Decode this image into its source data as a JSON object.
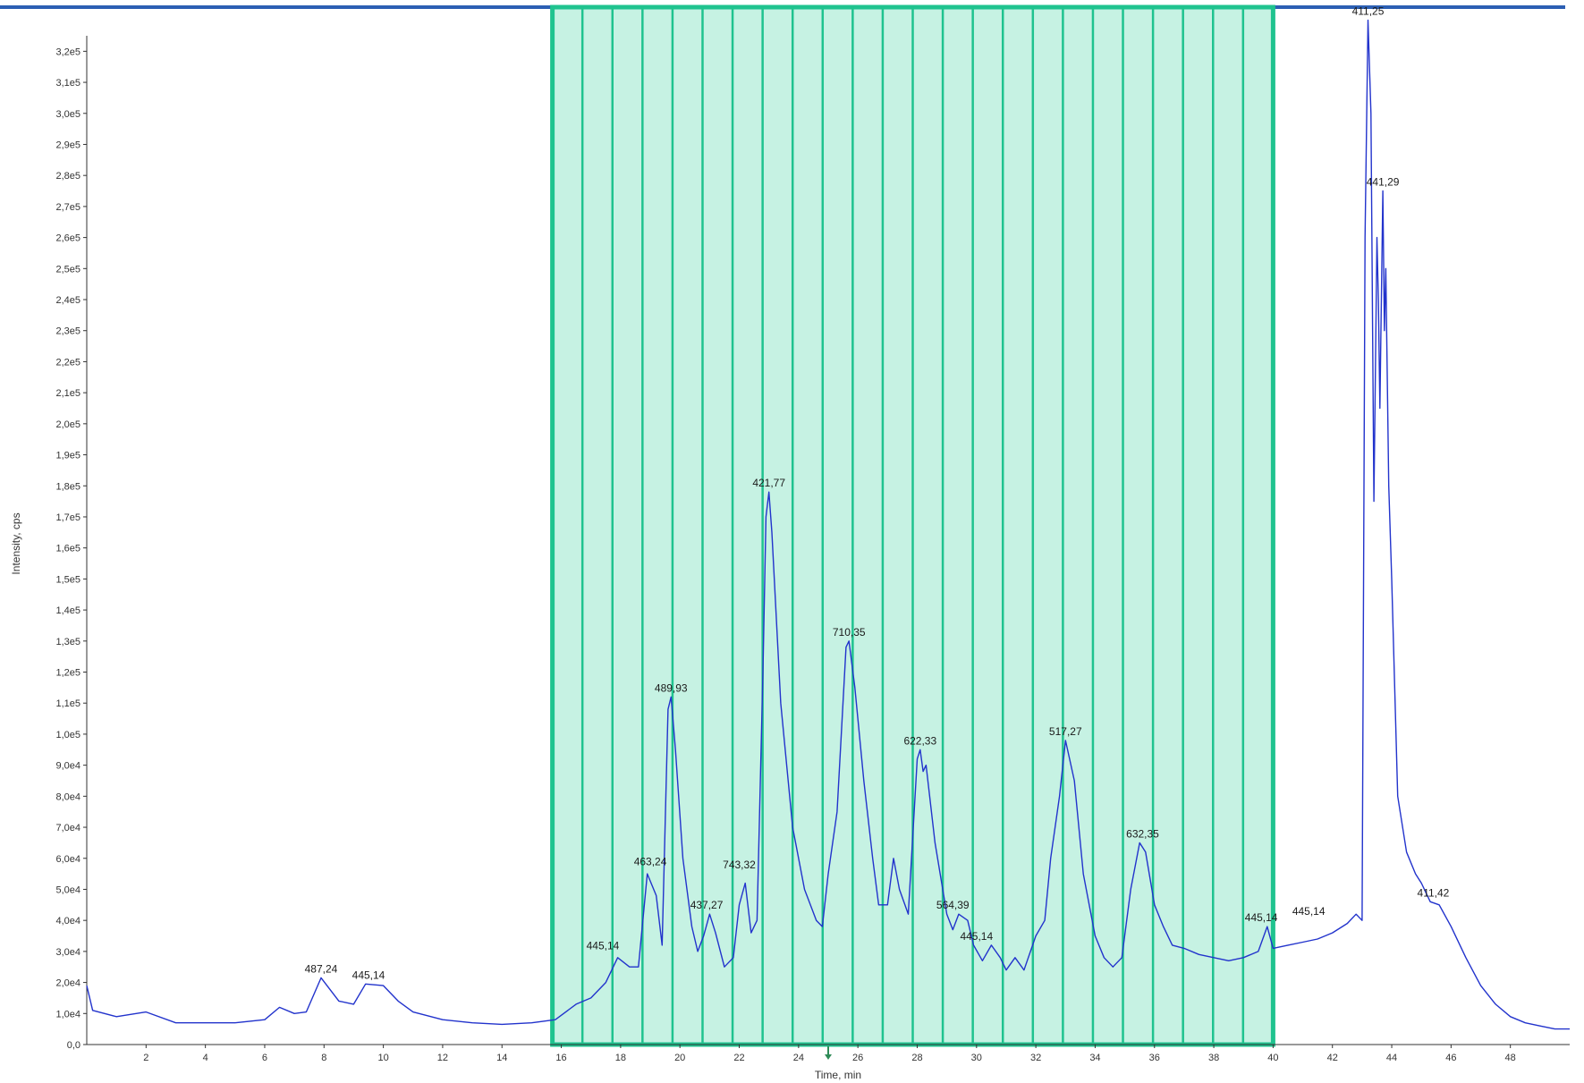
{
  "chart_data": {
    "type": "line",
    "xlabel": "Time, min",
    "ylabel": "Intensity, cps",
    "xlim": [
      0,
      50
    ],
    "ylim": [
      0,
      325000
    ],
    "x_ticks": [
      2,
      4,
      6,
      8,
      10,
      12,
      14,
      16,
      18,
      20,
      22,
      24,
      26,
      28,
      30,
      32,
      34,
      36,
      38,
      40,
      42,
      44,
      46,
      48
    ],
    "y_ticks": [
      {
        "value": 0,
        "label": "0,0"
      },
      {
        "value": 10000,
        "label": "1,0e4"
      },
      {
        "value": 20000,
        "label": "2,0e4"
      },
      {
        "value": 30000,
        "label": "3,0e4"
      },
      {
        "value": 40000,
        "label": "4,0e4"
      },
      {
        "value": 50000,
        "label": "5,0e4"
      },
      {
        "value": 60000,
        "label": "6,0e4"
      },
      {
        "value": 70000,
        "label": "7,0e4"
      },
      {
        "value": 80000,
        "label": "8,0e4"
      },
      {
        "value": 90000,
        "label": "9,0e4"
      },
      {
        "value": 100000,
        "label": "1,0e5"
      },
      {
        "value": 110000,
        "label": "1,1e5"
      },
      {
        "value": 120000,
        "label": "1,2e5"
      },
      {
        "value": 130000,
        "label": "1,3e5"
      },
      {
        "value": 140000,
        "label": "1,4e5"
      },
      {
        "value": 150000,
        "label": "1,5e5"
      },
      {
        "value": 160000,
        "label": "1,6e5"
      },
      {
        "value": 170000,
        "label": "1,7e5"
      },
      {
        "value": 180000,
        "label": "1,8e5"
      },
      {
        "value": 190000,
        "label": "1,9e5"
      },
      {
        "value": 200000,
        "label": "2,0e5"
      },
      {
        "value": 210000,
        "label": "2,1e5"
      },
      {
        "value": 220000,
        "label": "2,2e5"
      },
      {
        "value": 230000,
        "label": "2,3e5"
      },
      {
        "value": 240000,
        "label": "2,4e5"
      },
      {
        "value": 250000,
        "label": "2,5e5"
      },
      {
        "value": 260000,
        "label": "2,6e5"
      },
      {
        "value": 270000,
        "label": "2,7e5"
      },
      {
        "value": 280000,
        "label": "2,8e5"
      },
      {
        "value": 290000,
        "label": "2,9e5"
      },
      {
        "value": 300000,
        "label": "3,0e5"
      },
      {
        "value": 310000,
        "label": "3,1e5"
      },
      {
        "value": 320000,
        "label": "3,2e5"
      }
    ],
    "series": [
      {
        "color": "#2233cc",
        "points": [
          [
            0.0,
            19000
          ],
          [
            0.2,
            11000
          ],
          [
            1.0,
            9000
          ],
          [
            2.0,
            10500
          ],
          [
            3.0,
            7000
          ],
          [
            4.0,
            7000
          ],
          [
            5.0,
            7000
          ],
          [
            6.0,
            8000
          ],
          [
            6.5,
            12000
          ],
          [
            7.0,
            10000
          ],
          [
            7.4,
            10500
          ],
          [
            7.9,
            21500
          ],
          [
            8.5,
            14000
          ],
          [
            9.0,
            13000
          ],
          [
            9.4,
            19500
          ],
          [
            10.0,
            19000
          ],
          [
            10.5,
            14000
          ],
          [
            11.0,
            10500
          ],
          [
            12.0,
            8000
          ],
          [
            13.0,
            7000
          ],
          [
            14.0,
            6500
          ],
          [
            15.0,
            7000
          ],
          [
            15.8,
            8000
          ],
          [
            16.5,
            13000
          ],
          [
            17.0,
            15000
          ],
          [
            17.5,
            20000
          ],
          [
            17.9,
            28000
          ],
          [
            18.3,
            25000
          ],
          [
            18.6,
            25000
          ],
          [
            18.9,
            55000
          ],
          [
            19.2,
            48000
          ],
          [
            19.4,
            32000
          ],
          [
            19.6,
            108000
          ],
          [
            19.7,
            112000
          ],
          [
            19.85,
            95000
          ],
          [
            20.1,
            60000
          ],
          [
            20.4,
            38000
          ],
          [
            20.6,
            30000
          ],
          [
            20.8,
            35000
          ],
          [
            21.0,
            42000
          ],
          [
            21.2,
            36000
          ],
          [
            21.5,
            25000
          ],
          [
            21.8,
            28000
          ],
          [
            22.0,
            45000
          ],
          [
            22.2,
            52000
          ],
          [
            22.4,
            36000
          ],
          [
            22.6,
            40000
          ],
          [
            22.8,
            120000
          ],
          [
            22.9,
            170000
          ],
          [
            23.0,
            178000
          ],
          [
            23.1,
            165000
          ],
          [
            23.4,
            110000
          ],
          [
            23.8,
            70000
          ],
          [
            24.2,
            50000
          ],
          [
            24.6,
            40000
          ],
          [
            24.8,
            38000
          ],
          [
            25.0,
            55000
          ],
          [
            25.3,
            75000
          ],
          [
            25.6,
            128000
          ],
          [
            25.7,
            130000
          ],
          [
            25.9,
            115000
          ],
          [
            26.2,
            85000
          ],
          [
            26.5,
            60000
          ],
          [
            26.7,
            45000
          ],
          [
            27.0,
            45000
          ],
          [
            27.2,
            60000
          ],
          [
            27.4,
            50000
          ],
          [
            27.7,
            42000
          ],
          [
            28.0,
            92000
          ],
          [
            28.1,
            95000
          ],
          [
            28.2,
            88000
          ],
          [
            28.3,
            90000
          ],
          [
            28.6,
            65000
          ],
          [
            29.0,
            42000
          ],
          [
            29.2,
            37000
          ],
          [
            29.4,
            42000
          ],
          [
            29.7,
            40000
          ],
          [
            29.9,
            32000
          ],
          [
            30.2,
            27000
          ],
          [
            30.5,
            32000
          ],
          [
            30.8,
            28000
          ],
          [
            31.0,
            24000
          ],
          [
            31.3,
            28000
          ],
          [
            31.6,
            24000
          ],
          [
            32.0,
            35000
          ],
          [
            32.3,
            40000
          ],
          [
            32.5,
            60000
          ],
          [
            32.8,
            80000
          ],
          [
            33.0,
            98000
          ],
          [
            33.3,
            85000
          ],
          [
            33.6,
            55000
          ],
          [
            34.0,
            35000
          ],
          [
            34.3,
            28000
          ],
          [
            34.6,
            25000
          ],
          [
            34.9,
            28000
          ],
          [
            35.2,
            50000
          ],
          [
            35.5,
            65000
          ],
          [
            35.7,
            62000
          ],
          [
            36.0,
            45000
          ],
          [
            36.3,
            38000
          ],
          [
            36.6,
            32000
          ],
          [
            37.0,
            31000
          ],
          [
            37.5,
            29000
          ],
          [
            38.0,
            28000
          ],
          [
            38.5,
            27000
          ],
          [
            39.0,
            28000
          ],
          [
            39.5,
            30000
          ],
          [
            39.8,
            38000
          ],
          [
            40.0,
            31000
          ],
          [
            40.5,
            32000
          ],
          [
            41.0,
            33000
          ],
          [
            41.5,
            34000
          ],
          [
            42.0,
            36000
          ],
          [
            42.5,
            39000
          ],
          [
            42.8,
            42000
          ],
          [
            43.0,
            40000
          ],
          [
            43.1,
            260000
          ],
          [
            43.2,
            330000
          ],
          [
            43.3,
            300000
          ],
          [
            43.4,
            175000
          ],
          [
            43.5,
            260000
          ],
          [
            43.55,
            240000
          ],
          [
            43.6,
            205000
          ],
          [
            43.7,
            275000
          ],
          [
            43.75,
            230000
          ],
          [
            43.8,
            250000
          ],
          [
            43.9,
            180000
          ],
          [
            44.0,
            150000
          ],
          [
            44.2,
            80000
          ],
          [
            44.5,
            62000
          ],
          [
            44.8,
            55000
          ],
          [
            45.0,
            52000
          ],
          [
            45.3,
            46000
          ],
          [
            45.6,
            45000
          ],
          [
            46.0,
            38000
          ],
          [
            46.5,
            28000
          ],
          [
            47.0,
            19000
          ],
          [
            47.5,
            13000
          ],
          [
            48.0,
            9000
          ],
          [
            48.5,
            7000
          ],
          [
            49.0,
            6000
          ],
          [
            49.5,
            5000
          ],
          [
            50.0,
            5000
          ]
        ]
      }
    ],
    "annotations": [
      {
        "label": "487,24",
        "x": 7.9,
        "y": 21500
      },
      {
        "label": "445,14",
        "x": 9.5,
        "y": 19500
      },
      {
        "label": "445,14",
        "x": 17.4,
        "y": 29000
      },
      {
        "label": "463,24",
        "x": 19.0,
        "y": 56000
      },
      {
        "label": "489,93",
        "x": 19.7,
        "y": 112000
      },
      {
        "label": "437,27",
        "x": 20.9,
        "y": 42000
      },
      {
        "label": "743,32",
        "x": 22.0,
        "y": 55000
      },
      {
        "label": "421,77",
        "x": 23.0,
        "y": 178000
      },
      {
        "label": "710,35",
        "x": 25.7,
        "y": 130000
      },
      {
        "label": "622,33",
        "x": 28.1,
        "y": 95000
      },
      {
        "label": "564,39",
        "x": 29.2,
        "y": 42000
      },
      {
        "label": "445,14",
        "x": 30.0,
        "y": 32000
      },
      {
        "label": "517,27",
        "x": 33.0,
        "y": 98000
      },
      {
        "label": "632,35",
        "x": 35.6,
        "y": 65000
      },
      {
        "label": "445,14",
        "x": 39.6,
        "y": 38000
      },
      {
        "label": "445,14",
        "x": 41.2,
        "y": 40000
      },
      {
        "label": "411,25",
        "x": 43.2,
        "y": 330000
      },
      {
        "label": "441,29",
        "x": 43.7,
        "y": 275000
      },
      {
        "label": "411,42",
        "x": 45.4,
        "y": 46000
      }
    ],
    "highlight": {
      "x_start": 15.7,
      "x_end": 40,
      "color": "#1fc38f",
      "divider_count": 24
    },
    "marker_x": 25
  },
  "colors": {
    "top_rule": "#2c5fb3",
    "highlight_fill": "#c6f2e3",
    "highlight_border": "#1fc38f",
    "trace": "#2233cc",
    "marker": "#2e8b57"
  }
}
